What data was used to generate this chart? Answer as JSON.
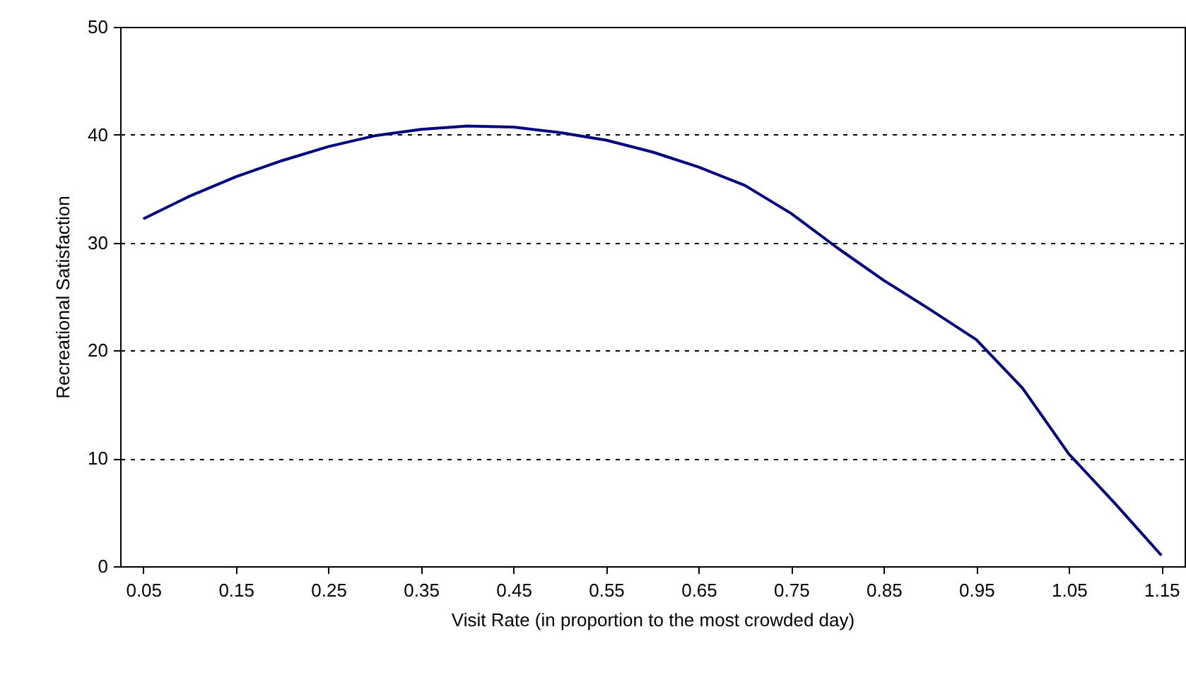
{
  "chart_data": {
    "type": "line",
    "xlabel": "Visit Rate (in proportion to the most crowded day)",
    "ylabel": "Recreational Satisfaction",
    "x": [
      0.05,
      0.1,
      0.15,
      0.2,
      0.25,
      0.3,
      0.35,
      0.4,
      0.45,
      0.5,
      0.55,
      0.6,
      0.65,
      0.7,
      0.75,
      0.8,
      0.85,
      0.9,
      0.95,
      1.0,
      1.05,
      1.1,
      1.15
    ],
    "series": [
      {
        "color": "#000080",
        "values": [
          32.2,
          34.3,
          36.1,
          37.6,
          38.9,
          39.9,
          40.5,
          40.8,
          40.7,
          40.2,
          39.5,
          38.4,
          37.0,
          35.3,
          32.7,
          29.5,
          26.5,
          23.8,
          21.0,
          16.5,
          10.4,
          5.8,
          1.0
        ]
      }
    ],
    "xlim": [
      0.025,
      1.175
    ],
    "xticks": [
      0.05,
      0.15,
      0.25,
      0.35,
      0.45,
      0.55,
      0.65,
      0.75,
      0.85,
      0.95,
      1.05,
      1.15
    ],
    "ylim": [
      0,
      50
    ],
    "yticks": [
      0,
      10,
      20,
      30,
      40,
      50
    ],
    "grid": "y",
    "marker": "none",
    "line_style": "solid"
  }
}
